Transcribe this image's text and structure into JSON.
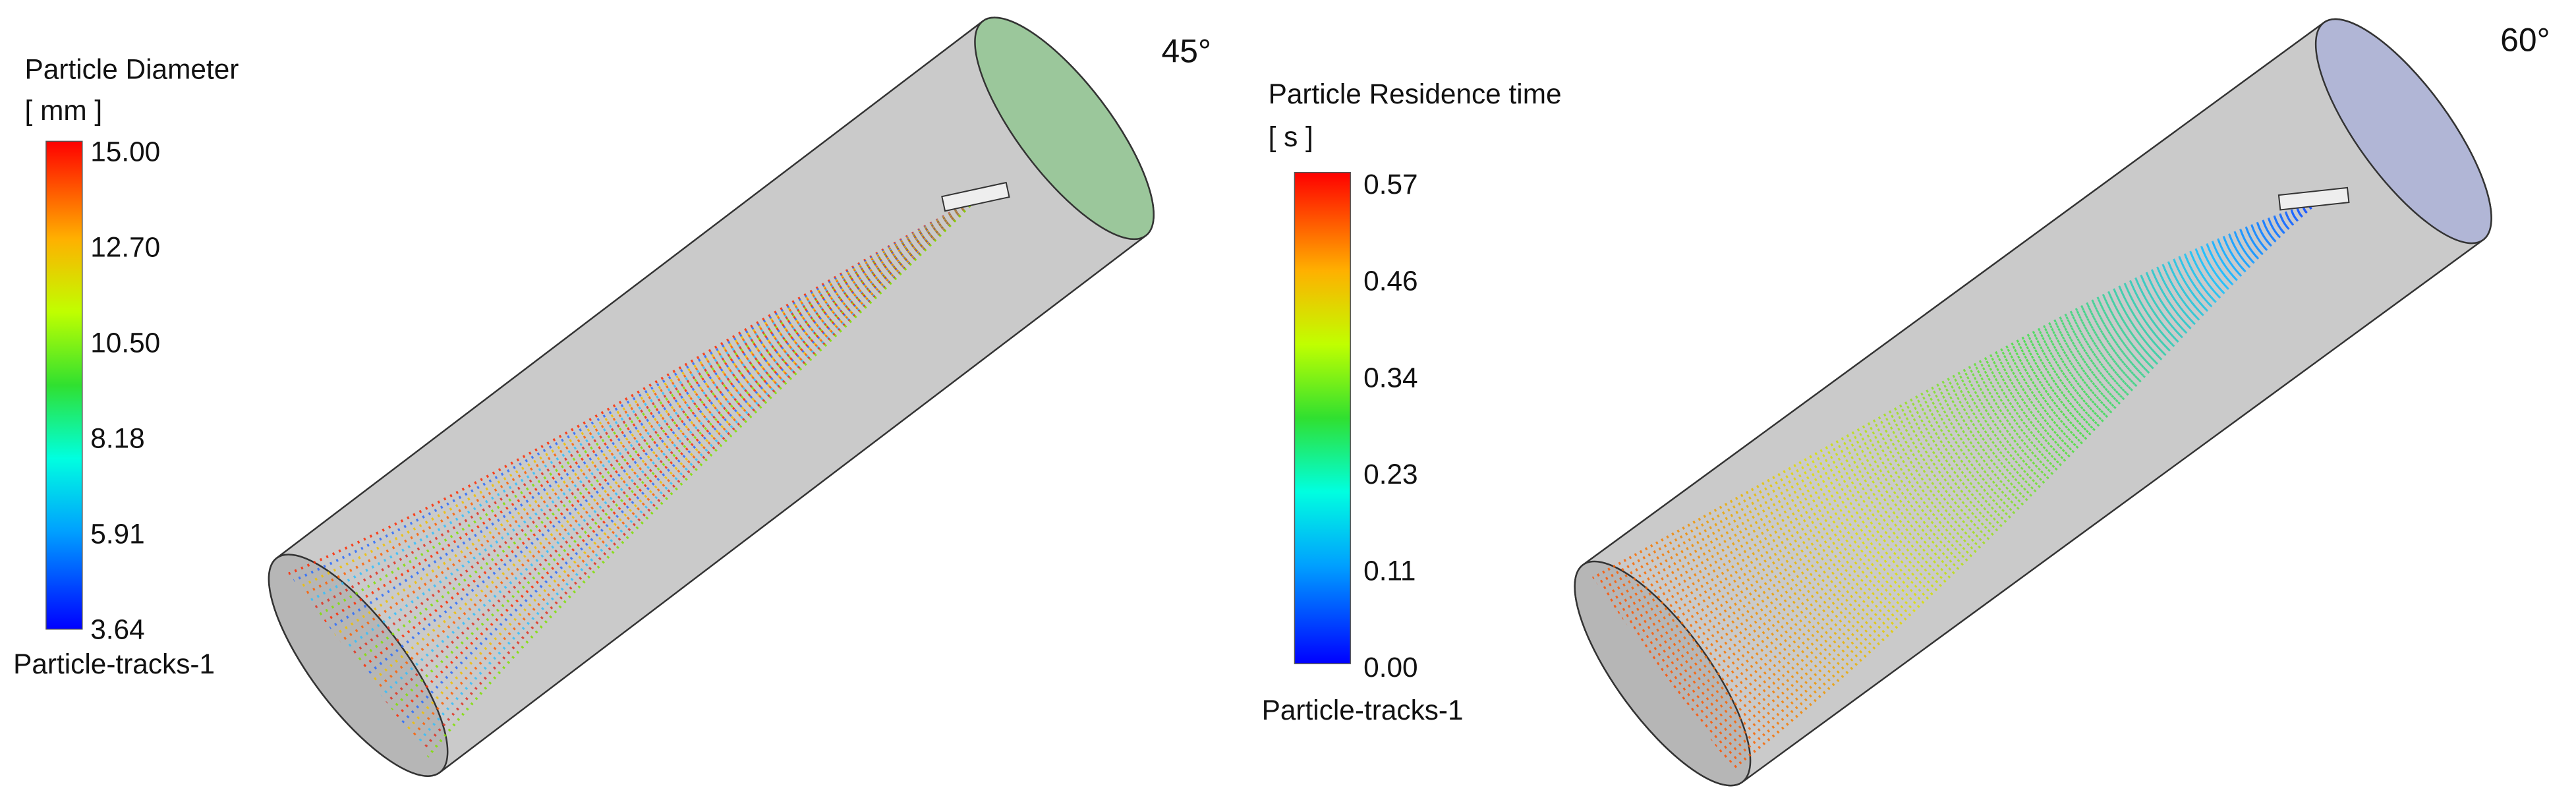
{
  "panels": [
    {
      "legend_title": "Particle Diameter",
      "unit": "[ mm ]",
      "ticks": [
        "15.00",
        "12.70",
        "10.50",
        "8.18",
        "5.91",
        "3.64"
      ],
      "label": "Particle-tracks-1",
      "angle": "45°"
    },
    {
      "legend_title": "Particle Residence time",
      "unit": "[ s ]",
      "ticks": [
        "0.57",
        "0.46",
        "0.34",
        "0.23",
        "0.11",
        "0.00"
      ],
      "label": "Particle-tracks-1",
      "angle": "60°"
    }
  ]
}
